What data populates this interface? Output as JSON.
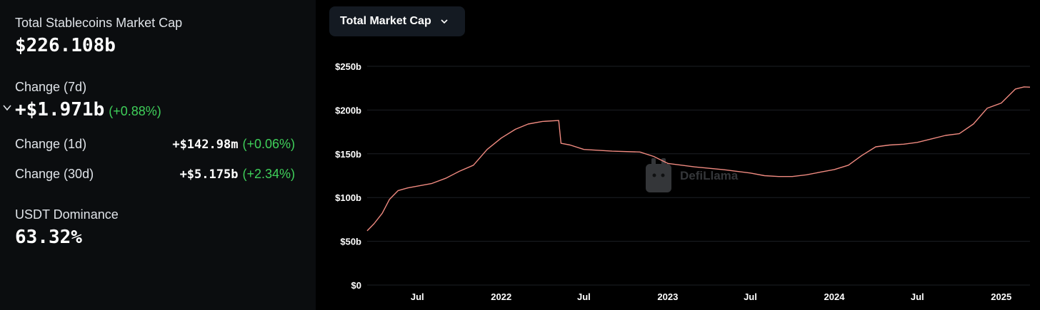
{
  "summary": {
    "market_cap_label": "Total Stablecoins Market Cap",
    "market_cap_value": "$226.108b",
    "change7d_label": "Change (7d)",
    "change7d_value": "+$1.971b",
    "change7d_pct": "(+0.88%)",
    "change1d_label": "Change (1d)",
    "change1d_value": "+$142.98m",
    "change1d_pct": "(+0.06%)",
    "change30d_label": "Change (30d)",
    "change30d_value": "+$5.175b",
    "change30d_pct": "(+2.34%)",
    "dominance_label": "USDT Dominance",
    "dominance_value": "63.32%"
  },
  "selector": {
    "label": "Total Market Cap"
  },
  "watermark": {
    "text": "DefiLlama"
  },
  "colors": {
    "line": "#f08a80",
    "positive": "#3fcf5a",
    "grid": "#1c1f24",
    "axis_text": "#ffffff"
  },
  "chart_data": {
    "type": "line",
    "title": "",
    "xlabel": "",
    "ylabel": "",
    "ylim": [
      0,
      250
    ],
    "y_unit": "billion USD",
    "y_ticks": [
      "$0",
      "$50b",
      "$100b",
      "$150b",
      "$200b",
      "$250b"
    ],
    "x_ticks": [
      "Jul",
      "2022",
      "Jul",
      "2023",
      "Jul",
      "2024",
      "Jul",
      "2025"
    ],
    "x_range": [
      "2021-03-13",
      "2025-03-05"
    ],
    "grid": true,
    "legend": "none",
    "series": [
      {
        "points": [
          [
            "2021-03-13",
            62
          ],
          [
            "2021-03-28",
            70
          ],
          [
            "2021-04-15",
            82
          ],
          [
            "2021-05-01",
            98
          ],
          [
            "2021-05-20",
            108
          ],
          [
            "2021-06-10",
            111
          ],
          [
            "2021-07-01",
            113
          ],
          [
            "2021-08-01",
            116
          ],
          [
            "2021-09-01",
            122
          ],
          [
            "2021-10-01",
            130
          ],
          [
            "2021-11-01",
            137
          ],
          [
            "2021-12-01",
            155
          ],
          [
            "2022-01-01",
            168
          ],
          [
            "2022-02-01",
            178
          ],
          [
            "2022-03-01",
            184
          ],
          [
            "2022-04-01",
            187
          ],
          [
            "2022-05-07",
            188
          ],
          [
            "2022-05-12",
            162
          ],
          [
            "2022-06-01",
            160
          ],
          [
            "2022-07-01",
            155
          ],
          [
            "2022-09-01",
            153
          ],
          [
            "2022-11-01",
            152
          ],
          [
            "2022-12-01",
            147
          ],
          [
            "2023-01-01",
            139
          ],
          [
            "2023-03-01",
            135
          ],
          [
            "2023-05-01",
            132
          ],
          [
            "2023-07-01",
            128
          ],
          [
            "2023-08-01",
            125
          ],
          [
            "2023-09-01",
            124
          ],
          [
            "2023-10-01",
            124
          ],
          [
            "2023-11-01",
            126
          ],
          [
            "2023-12-01",
            129
          ],
          [
            "2024-01-01",
            132
          ],
          [
            "2024-02-01",
            137
          ],
          [
            "2024-03-01",
            148
          ],
          [
            "2024-04-01",
            158
          ],
          [
            "2024-05-01",
            160
          ],
          [
            "2024-06-01",
            161
          ],
          [
            "2024-07-01",
            163
          ],
          [
            "2024-08-01",
            167
          ],
          [
            "2024-09-01",
            171
          ],
          [
            "2024-10-01",
            173
          ],
          [
            "2024-11-01",
            184
          ],
          [
            "2024-12-01",
            202
          ],
          [
            "2025-01-01",
            208
          ],
          [
            "2025-02-01",
            224
          ],
          [
            "2025-02-20",
            226.5
          ],
          [
            "2025-03-05",
            226.1
          ]
        ]
      }
    ]
  }
}
